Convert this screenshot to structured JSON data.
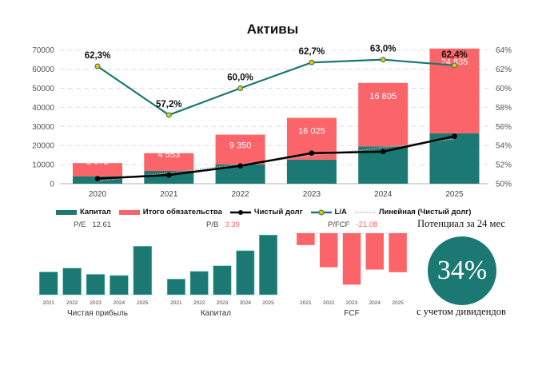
{
  "colors": {
    "capital": "#1b7872",
    "liabilities": "#fb6468",
    "net_debt": "#000000",
    "la": "#1b7872",
    "la_marker": "#f2c200",
    "negative": "#fb6468"
  },
  "chart_data": [
    {
      "type": "bar",
      "title": "Активы",
      "categories": [
        "2020",
        "2021",
        "2022",
        "2023",
        "2024",
        "2025"
      ],
      "ylim": [
        0,
        70000
      ],
      "yticks": [
        "0",
        "10000",
        "20000",
        "30000",
        "40000",
        "50000",
        "60000",
        "70000"
      ],
      "y2lim": [
        50,
        64
      ],
      "y2ticks": [
        "50%",
        "52%",
        "54%",
        "56%",
        "58%",
        "60%",
        "62%",
        "64%"
      ],
      "grid": true,
      "legend_position": "bottom",
      "series": [
        {
          "name": "Капитал",
          "kind": "stacked-bar",
          "values": [
            3900,
            6700,
            10100,
            12600,
            19500,
            26400
          ]
        },
        {
          "name": "Итого обязательства",
          "kind": "stacked-bar",
          "values": [
            6900,
            9300,
            15600,
            21900,
            33300,
            44400
          ]
        },
        {
          "name": "Чистый долг",
          "kind": "line",
          "values": [
            2672,
            4553,
            9350,
            16025,
            16805,
            24835
          ],
          "labels": [
            "2 672",
            "4 553",
            "9 350",
            "16 025",
            "16 805",
            "24 835"
          ]
        },
        {
          "name": "L/A",
          "kind": "line",
          "axis": "right",
          "values": [
            62.3,
            57.2,
            60.0,
            62.7,
            63.0,
            62.4
          ],
          "labels": [
            "62,3%",
            "57,2%",
            "60,0%",
            "62,7%",
            "63,0%",
            "62,4%"
          ]
        },
        {
          "name": "Линейная (Чистый долг)",
          "kind": "trendline"
        }
      ]
    },
    {
      "type": "bar",
      "title": "Чистая прибыль",
      "categories": [
        "2021",
        "2022",
        "2023",
        "2024",
        "2025"
      ],
      "values": [
        77,
        90,
        69,
        65,
        164
      ],
      "units": "relative"
    },
    {
      "type": "bar",
      "title": "Капитал",
      "categories": [
        "2021",
        "2022",
        "2023",
        "2024",
        "2025"
      ],
      "values": [
        53,
        79,
        98,
        149,
        202
      ],
      "units": "relative"
    },
    {
      "type": "bar",
      "title": "FCF",
      "categories": [
        "2021",
        "2022",
        "2023",
        "2024",
        "2025"
      ],
      "values": [
        -40,
        -115,
        -174,
        -123,
        -132
      ],
      "units": "relative"
    }
  ],
  "ratios": {
    "pe_label": "P/E",
    "pe_value": "12.61",
    "pb_label": "P/B",
    "pb_value": "3.39",
    "pfcf_label": "P/FCF",
    "pfcf_value": "-21.08"
  },
  "potential": {
    "title": "Потенциал за 24 мес",
    "value": "34%",
    "note": "с учетом дивидендов"
  }
}
